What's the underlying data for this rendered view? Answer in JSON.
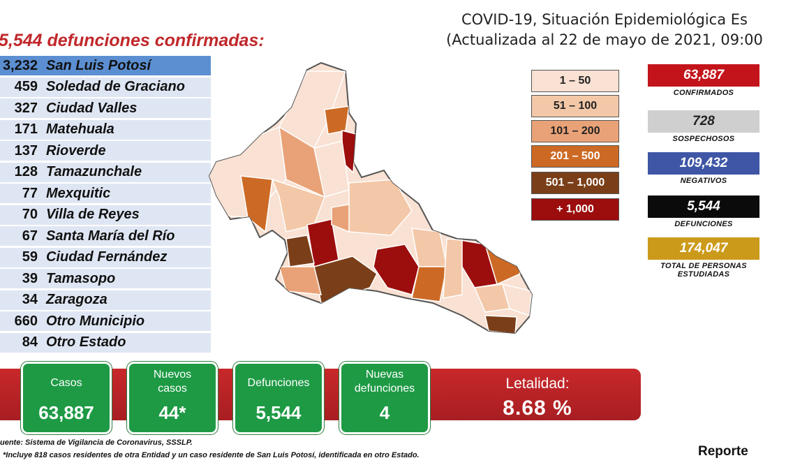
{
  "header": {
    "title_line1": "COVID-19, Situación Epidemiológica Es",
    "title_line2": "(Actualizada al 22 de mayo de 2021, 09:00"
  },
  "headline": "5,544 defunciones confirmadas:",
  "municipios": [
    {
      "count": "3,232",
      "name": "San Luis Potosí"
    },
    {
      "count": "459",
      "name": "Soledad de Graciano"
    },
    {
      "count": "327",
      "name": "Ciudad Valles"
    },
    {
      "count": "171",
      "name": "Matehuala"
    },
    {
      "count": "137",
      "name": "Rioverde"
    },
    {
      "count": "128",
      "name": "Tamazunchale"
    },
    {
      "count": "77",
      "name": "Mexquitic"
    },
    {
      "count": "70",
      "name": "Villa de Reyes"
    },
    {
      "count": "67",
      "name": "Santa María del Río"
    },
    {
      "count": "59",
      "name": "Ciudad Fernández"
    },
    {
      "count": "39",
      "name": "Tamasopo"
    },
    {
      "count": "34",
      "name": "Zaragoza"
    },
    {
      "count": "660",
      "name": "Otro Municipio"
    },
    {
      "count": "84",
      "name": "Otro Estado"
    }
  ],
  "legend": [
    {
      "label": "1 – 50",
      "color": "#f9e1d3",
      "text_color": "#222"
    },
    {
      "label": "51 – 100",
      "color": "#f3c8a8",
      "text_color": "#222"
    },
    {
      "label": "101 – 200",
      "color": "#e9a277",
      "text_color": "#222"
    },
    {
      "label": "201 – 500",
      "color": "#cc6a25",
      "text_color": "#ffffff"
    },
    {
      "label": "501 – 1,000",
      "color": "#7a3f18",
      "text_color": "#ffffff"
    },
    {
      "label": "+ 1,000",
      "color": "#9c0d0d",
      "text_color": "#ffffff"
    }
  ],
  "stats": [
    {
      "value": "63,887",
      "label": "CONFIRMADOS",
      "color": "#c4141b"
    },
    {
      "value": "728",
      "label": "SOSPECHOSOS",
      "color": "#cfcfcf"
    },
    {
      "value": "109,432",
      "label": "NEGATIVOS",
      "color": "#3f56a6"
    },
    {
      "value": "5,544",
      "label": "DEFUNCIONES",
      "color": "#0b0b0b"
    },
    {
      "value": "174,047",
      "label": "TOTAL DE PERSONAS ESTUDIADAS",
      "color": "#cc9a1a"
    }
  ],
  "cards": [
    {
      "label": "Casos",
      "value": "63,887"
    },
    {
      "label": "Nuevos casos",
      "value": "44*"
    },
    {
      "label": "Defunciones",
      "value": "5,544"
    },
    {
      "label": "Nuevas defunciones",
      "value": "4"
    }
  ],
  "letalidad": {
    "label": "Letalidad:",
    "value": "8.68 %"
  },
  "footer": {
    "source": "uente: Sistema de Vigilancia de Coronavirus, SSSLP.",
    "note": "*Incluye 818 casos residentes de otra Entidad y un caso residente de San Luis Potosí, identificada en otro Estado."
  },
  "brand": "Reporte"
}
